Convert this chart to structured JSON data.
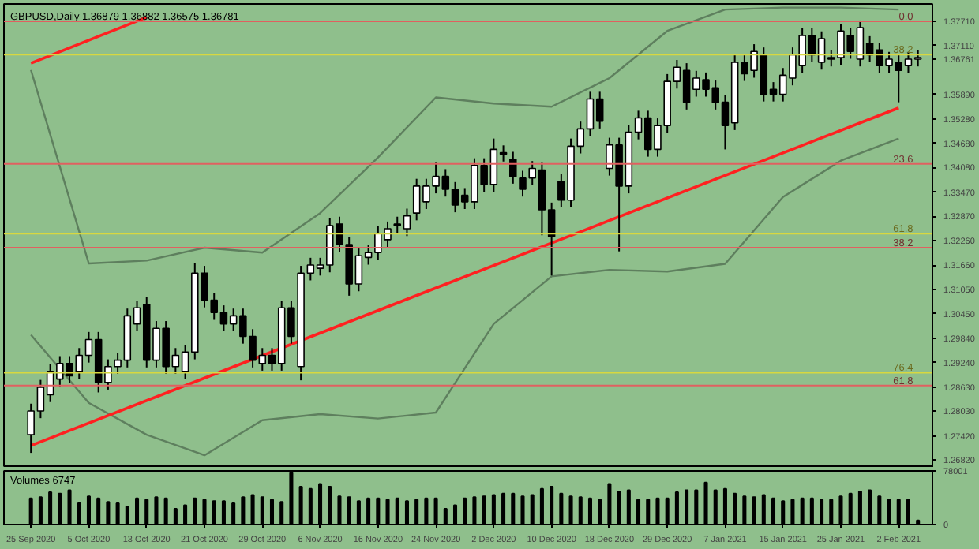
{
  "chart_data": [
    {
      "type": "candlestick",
      "title": "GBPUSD,Daily  1.36879 1.36882 1.36575 1.36781",
      "categories": [
        "25 Sep 2020",
        null,
        null,
        null,
        null,
        null,
        "5 Oct 2020",
        null,
        null,
        null,
        null,
        null,
        "13 Oct 2020",
        null,
        null,
        null,
        null,
        null,
        "21 Oct 2020",
        null,
        null,
        null,
        null,
        null,
        "29 Oct 2020",
        null,
        null,
        null,
        null,
        null,
        "6 Nov 2020",
        null,
        null,
        null,
        null,
        null,
        "16 Nov 2020",
        null,
        null,
        null,
        null,
        null,
        "24 Nov 2020",
        null,
        null,
        null,
        null,
        null,
        "2 Dec 2020",
        null,
        null,
        null,
        null,
        null,
        "10 Dec 2020",
        null,
        null,
        null,
        null,
        null,
        "18 Dec 2020",
        null,
        null,
        null,
        null,
        null,
        "29 Dec 2020",
        null,
        null,
        null,
        null,
        null,
        "7 Jan 2021",
        null,
        null,
        null,
        null,
        null,
        "15 Jan 2021",
        null,
        null,
        null,
        null,
        null,
        "25 Jan 2021",
        null,
        null,
        null,
        null,
        null,
        "2 Feb 2021",
        null,
        null
      ],
      "ohlc": [
        [
          1.2745,
          1.2822,
          1.27,
          1.2804
        ],
        [
          1.2804,
          1.2881,
          1.2786,
          1.2863
        ],
        [
          1.2844,
          1.292,
          1.2826,
          1.2902
        ],
        [
          1.2883,
          1.294,
          1.2865,
          1.2922
        ],
        [
          1.2922,
          1.294,
          1.2873,
          1.2891
        ],
        [
          1.2902,
          1.296,
          1.2884,
          1.2942
        ],
        [
          1.2942,
          1.3,
          1.2924,
          1.2981
        ],
        [
          1.2981,
          1.3,
          1.285,
          1.2875
        ],
        [
          1.2875,
          1.2932,
          1.2857,
          1.2914
        ],
        [
          1.2914,
          1.2948,
          1.2896,
          1.293
        ],
        [
          1.293,
          1.3058,
          1.2912,
          1.304
        ],
        [
          1.302,
          1.3078,
          1.3002,
          1.306
        ],
        [
          1.3068,
          1.3086,
          1.2912,
          1.293
        ],
        [
          1.293,
          1.3027,
          1.2912,
          1.3009
        ],
        [
          1.3009,
          1.3027,
          1.2896,
          1.2914
        ],
        [
          1.2914,
          1.296,
          1.2896,
          1.2942
        ],
        [
          1.2902,
          1.2968,
          1.2884,
          1.295
        ],
        [
          1.295,
          1.317,
          1.2932,
          1.3146
        ],
        [
          1.3146,
          1.3164,
          1.3061,
          1.3079
        ],
        [
          1.3079,
          1.3097,
          1.303,
          1.3048
        ],
        [
          1.3048,
          1.3066,
          1.3002,
          1.302
        ],
        [
          1.302,
          1.3058,
          1.3002,
          1.304
        ],
        [
          1.304,
          1.3058,
          1.2971,
          1.2989
        ],
        [
          1.2989,
          1.3007,
          1.2912,
          1.293
        ],
        [
          1.2922,
          1.296,
          1.2904,
          1.2942
        ],
        [
          1.2942,
          1.296,
          1.2904,
          1.2922
        ],
        [
          1.2922,
          1.3078,
          1.2904,
          1.306
        ],
        [
          1.306,
          1.3078,
          1.2971,
          1.2989
        ],
        [
          1.2914,
          1.3164,
          1.288,
          1.3146
        ],
        [
          1.3146,
          1.3184,
          1.3128,
          1.3166
        ],
        [
          1.3158,
          1.3184,
          1.314,
          1.3166
        ],
        [
          1.3166,
          1.3282,
          1.3148,
          1.3264
        ],
        [
          1.3268,
          1.3286,
          1.3199,
          1.3217
        ],
        [
          1.3217,
          1.3235,
          1.309,
          1.3119
        ],
        [
          1.3119,
          1.3207,
          1.3101,
          1.3189
        ],
        [
          1.3185,
          1.3215,
          1.3167,
          1.3197
        ],
        [
          1.3197,
          1.3262,
          1.3179,
          1.3244
        ],
        [
          1.3229,
          1.3274,
          1.3211,
          1.3256
        ],
        [
          1.3268,
          1.3286,
          1.3246,
          1.3264
        ],
        [
          1.3256,
          1.3306,
          1.3238,
          1.3288
        ],
        [
          1.3295,
          1.338,
          1.3277,
          1.3362
        ],
        [
          1.3323,
          1.338,
          1.3305,
          1.3362
        ],
        [
          1.3362,
          1.342,
          1.3344,
          1.3386
        ],
        [
          1.3386,
          1.3404,
          1.3336,
          1.3354
        ],
        [
          1.3354,
          1.3372,
          1.3297,
          1.3315
        ],
        [
          1.3339,
          1.3357,
          1.3305,
          1.3323
        ],
        [
          1.3323,
          1.3431,
          1.3305,
          1.3413
        ],
        [
          1.3413,
          1.3431,
          1.3348,
          1.3366
        ],
        [
          1.3366,
          1.348,
          1.3348,
          1.3453
        ],
        [
          1.3445,
          1.3463,
          1.3423,
          1.3441
        ],
        [
          1.3429,
          1.3447,
          1.3368,
          1.3386
        ],
        [
          1.3382,
          1.34,
          1.3336,
          1.3354
        ],
        [
          1.3382,
          1.3424,
          1.3364,
          1.3406
        ],
        [
          1.3402,
          1.342,
          1.324,
          1.3303
        ],
        [
          1.3303,
          1.3321,
          1.314,
          1.3237
        ],
        [
          1.3374,
          1.3392,
          1.3309,
          1.3327
        ],
        [
          1.3327,
          1.348,
          1.3309,
          1.3461
        ],
        [
          1.3461,
          1.3522,
          1.3443,
          1.3504
        ],
        [
          1.3504,
          1.3596,
          1.3486,
          1.3578
        ],
        [
          1.3578,
          1.3596,
          1.3505,
          1.3523
        ],
        [
          1.3406,
          1.3482,
          1.3388,
          1.3464
        ],
        [
          1.3464,
          1.3482,
          1.32,
          1.3362
        ],
        [
          1.3362,
          1.3514,
          1.3344,
          1.3496
        ],
        [
          1.3496,
          1.3549,
          1.3478,
          1.3531
        ],
        [
          1.3531,
          1.3549,
          1.3435,
          1.3453
        ],
        [
          1.3453,
          1.353,
          1.3435,
          1.3512
        ],
        [
          1.3512,
          1.364,
          1.3494,
          1.3622
        ],
        [
          1.3622,
          1.3675,
          1.3604,
          1.3657
        ],
        [
          1.3649,
          1.3667,
          1.3552,
          1.357
        ],
        [
          1.3602,
          1.3648,
          1.3584,
          1.363
        ],
        [
          1.3626,
          1.3644,
          1.3584,
          1.3602
        ],
        [
          1.3606,
          1.3624,
          1.3552,
          1.357
        ],
        [
          1.357,
          1.3588,
          1.3453,
          1.3512
        ],
        [
          1.3519,
          1.3687,
          1.3501,
          1.3669
        ],
        [
          1.3669,
          1.3687,
          1.3623,
          1.3641
        ],
        [
          1.3649,
          1.3714,
          1.3631,
          1.3696
        ],
        [
          1.3688,
          1.3706,
          1.3572,
          1.359
        ],
        [
          1.3602,
          1.362,
          1.3572,
          1.359
        ],
        [
          1.359,
          1.3655,
          1.3572,
          1.3637
        ],
        [
          1.363,
          1.3706,
          1.3612,
          1.3688
        ],
        [
          1.3661,
          1.3754,
          1.3643,
          1.3736
        ],
        [
          1.3736,
          1.3754,
          1.367,
          1.3688
        ],
        [
          1.3669,
          1.3746,
          1.3651,
          1.3728
        ],
        [
          1.3681,
          1.3699,
          1.3659,
          1.3677
        ],
        [
          1.3681,
          1.3765,
          1.3663,
          1.3747
        ],
        [
          1.3736,
          1.3754,
          1.3678,
          1.3696
        ],
        [
          1.3677,
          1.3773,
          1.3659,
          1.3755
        ],
        [
          1.3716,
          1.3734,
          1.367,
          1.3688
        ],
        [
          1.37,
          1.3718,
          1.3643,
          1.3661
        ],
        [
          1.3661,
          1.3695,
          1.3643,
          1.3677
        ],
        [
          1.3669,
          1.3687,
          1.357,
          1.3649
        ],
        [
          1.3661,
          1.3695,
          1.3643,
          1.3677
        ],
        [
          1.3677,
          1.3699,
          1.3659,
          1.3681
        ]
      ],
      "series": [
        {
          "type": "line",
          "color": "#5e7f5e",
          "x": [
            "25 Sep 2020",
            "5 Oct 2020",
            "13 Oct 2020",
            "21 Oct 2020",
            "29 Oct 2020",
            "6 Nov 2020",
            "16 Nov 2020",
            "24 Nov 2020",
            "2 Dec 2020",
            "10 Dec 2020",
            "18 Dec 2020",
            "29 Dec 2020",
            "7 Jan 2021",
            "15 Jan 2021",
            "25 Jan 2021",
            "2 Feb 2021"
          ],
          "values": [
            1.365,
            1.317,
            1.3177,
            1.3209,
            1.3197,
            1.3295,
            1.3433,
            1.3582,
            1.3567,
            1.3559,
            1.363,
            1.3747,
            1.38,
            1.3805,
            1.3805,
            1.38
          ]
        },
        {
          "type": "line",
          "color": "#5e7f5e",
          "x": [
            "25 Sep 2020",
            "5 Oct 2020",
            "13 Oct 2020",
            "21 Oct 2020",
            "29 Oct 2020",
            "6 Nov 2020",
            "16 Nov 2020",
            "24 Nov 2020",
            "2 Dec 2020",
            "10 Dec 2020",
            "18 Dec 2020",
            "29 Dec 2020",
            "7 Jan 2021",
            "15 Jan 2021",
            "25 Jan 2021",
            "2 Feb 2021"
          ],
          "values": [
            1.2993,
            1.2824,
            1.2745,
            1.2694,
            1.2781,
            1.2796,
            1.2785,
            1.28,
            1.302,
            1.3138,
            1.3154,
            1.315,
            1.3169,
            1.3335,
            1.3425,
            1.348
          ]
        },
        {
          "type": "line",
          "color": "#ff2020",
          "x": [
            "25 Sep 2020",
            "2 Feb 2021"
          ],
          "values": [
            1.2718,
            1.3556
          ]
        },
        {
          "type": "line",
          "color": "#ff2020",
          "x": [
            "25 Sep 2020",
            "13 Oct 2020"
          ],
          "values": [
            1.3667,
            1.3781
          ]
        }
      ],
      "ref_lines": [
        {
          "axis": "y",
          "value": 1.3771,
          "color": "#e06060"
        },
        {
          "axis": "y",
          "value": 1.3688,
          "color": "#d8d840"
        },
        {
          "axis": "y",
          "value": 1.3417,
          "color": "#e06060"
        },
        {
          "axis": "y",
          "value": 1.3244,
          "color": "#d8d840"
        },
        {
          "axis": "y",
          "value": 1.3209,
          "color": "#e06060"
        },
        {
          "axis": "y",
          "value": 1.2899,
          "color": "#d8d840"
        },
        {
          "axis": "y",
          "value": 1.2867,
          "color": "#e06060"
        }
      ],
      "annotations": [
        {
          "text": "0.0",
          "y": 1.3771
        },
        {
          "text": "38.2",
          "y": 1.3688
        },
        {
          "text": "23.6",
          "y": 1.3417
        },
        {
          "text": "61.8",
          "y": 1.3244
        },
        {
          "text": "38.2",
          "y": 1.3209
        },
        {
          "text": "76.4",
          "y": 1.2899
        },
        {
          "text": "61.8",
          "y": 1.2867
        }
      ],
      "ylim": [
        1.2663,
        1.3814
      ],
      "yticks": [
        {
          "value": 1.3771,
          "label": "1.37710"
        },
        {
          "value": 1.3711,
          "label": "1.37110"
        },
        {
          "value": 1.36761,
          "label": "1.36761"
        },
        {
          "value": 1.3589,
          "label": "1.35890"
        },
        {
          "value": 1.3528,
          "label": "1.35280"
        },
        {
          "value": 1.3468,
          "label": "1.34680"
        },
        {
          "value": 1.3408,
          "label": "1.34080"
        },
        {
          "value": 1.3347,
          "label": "1.33470"
        },
        {
          "value": 1.3287,
          "label": "1.32870"
        },
        {
          "value": 1.3226,
          "label": "1.32260"
        },
        {
          "value": 1.3166,
          "label": "1.31660"
        },
        {
          "value": 1.3105,
          "label": "1.31050"
        },
        {
          "value": 1.3045,
          "label": "1.30450"
        },
        {
          "value": 1.2984,
          "label": "1.29840"
        },
        {
          "value": 1.2924,
          "label": "1.29240"
        },
        {
          "value": 1.2863,
          "label": "1.28630"
        },
        {
          "value": 1.2803,
          "label": "1.28030"
        },
        {
          "value": 1.2742,
          "label": "1.27420"
        },
        {
          "value": 1.2682,
          "label": "1.26820"
        }
      ],
      "tick_labels": "y"
    },
    {
      "type": "bar",
      "title": "Volumes 6747",
      "color": "#000000",
      "categories": [
        "25 Sep 2020",
        null,
        null,
        null,
        null,
        null,
        "5 Oct 2020",
        null,
        null,
        null,
        null,
        null,
        "13 Oct 2020",
        null,
        null,
        null,
        null,
        null,
        "21 Oct 2020",
        null,
        null,
        null,
        null,
        null,
        "29 Oct 2020",
        null,
        null,
        null,
        null,
        null,
        "6 Nov 2020",
        null,
        null,
        null,
        null,
        null,
        "16 Nov 2020",
        null,
        null,
        null,
        null,
        null,
        "24 Nov 2020",
        null,
        null,
        null,
        null,
        null,
        "2 Dec 2020",
        null,
        null,
        null,
        null,
        null,
        "10 Dec 2020",
        null,
        null,
        null,
        null,
        null,
        "18 Dec 2020",
        null,
        null,
        null,
        null,
        null,
        "29 Dec 2020",
        null,
        null,
        null,
        null,
        null,
        "7 Jan 2021",
        null,
        null,
        null,
        null,
        null,
        "15 Jan 2021",
        null,
        null,
        null,
        null,
        null,
        "25 Jan 2021",
        null,
        null,
        null,
        null,
        null,
        "2 Feb 2021",
        null,
        null
      ],
      "values": [
        38000,
        40000,
        47000,
        45000,
        50000,
        31000,
        41000,
        38000,
        33000,
        31000,
        26000,
        38000,
        36000,
        40000,
        38000,
        23000,
        28000,
        38000,
        36000,
        34000,
        34000,
        31000,
        40000,
        43000,
        40000,
        36000,
        33000,
        75000,
        55000,
        52000,
        59000,
        55000,
        41000,
        40000,
        34000,
        38000,
        38000,
        36000,
        38000,
        34000,
        36000,
        38000,
        38000,
        23000,
        28000,
        38000,
        40000,
        41000,
        43000,
        45000,
        45000,
        41000,
        43000,
        52000,
        55000,
        45000,
        41000,
        40000,
        38000,
        36000,
        59000,
        48000,
        50000,
        36000,
        36000,
        38000,
        38000,
        47000,
        50000,
        50000,
        61000,
        50000,
        52000,
        45000,
        41000,
        40000,
        43000,
        38000,
        34000,
        36000,
        38000,
        38000,
        36000,
        36000,
        41000,
        45000,
        48000,
        50000,
        41000,
        36000,
        36000,
        36000,
        6000
      ],
      "ylim": [
        0,
        78001
      ],
      "yticks": [
        0,
        78001
      ]
    }
  ]
}
